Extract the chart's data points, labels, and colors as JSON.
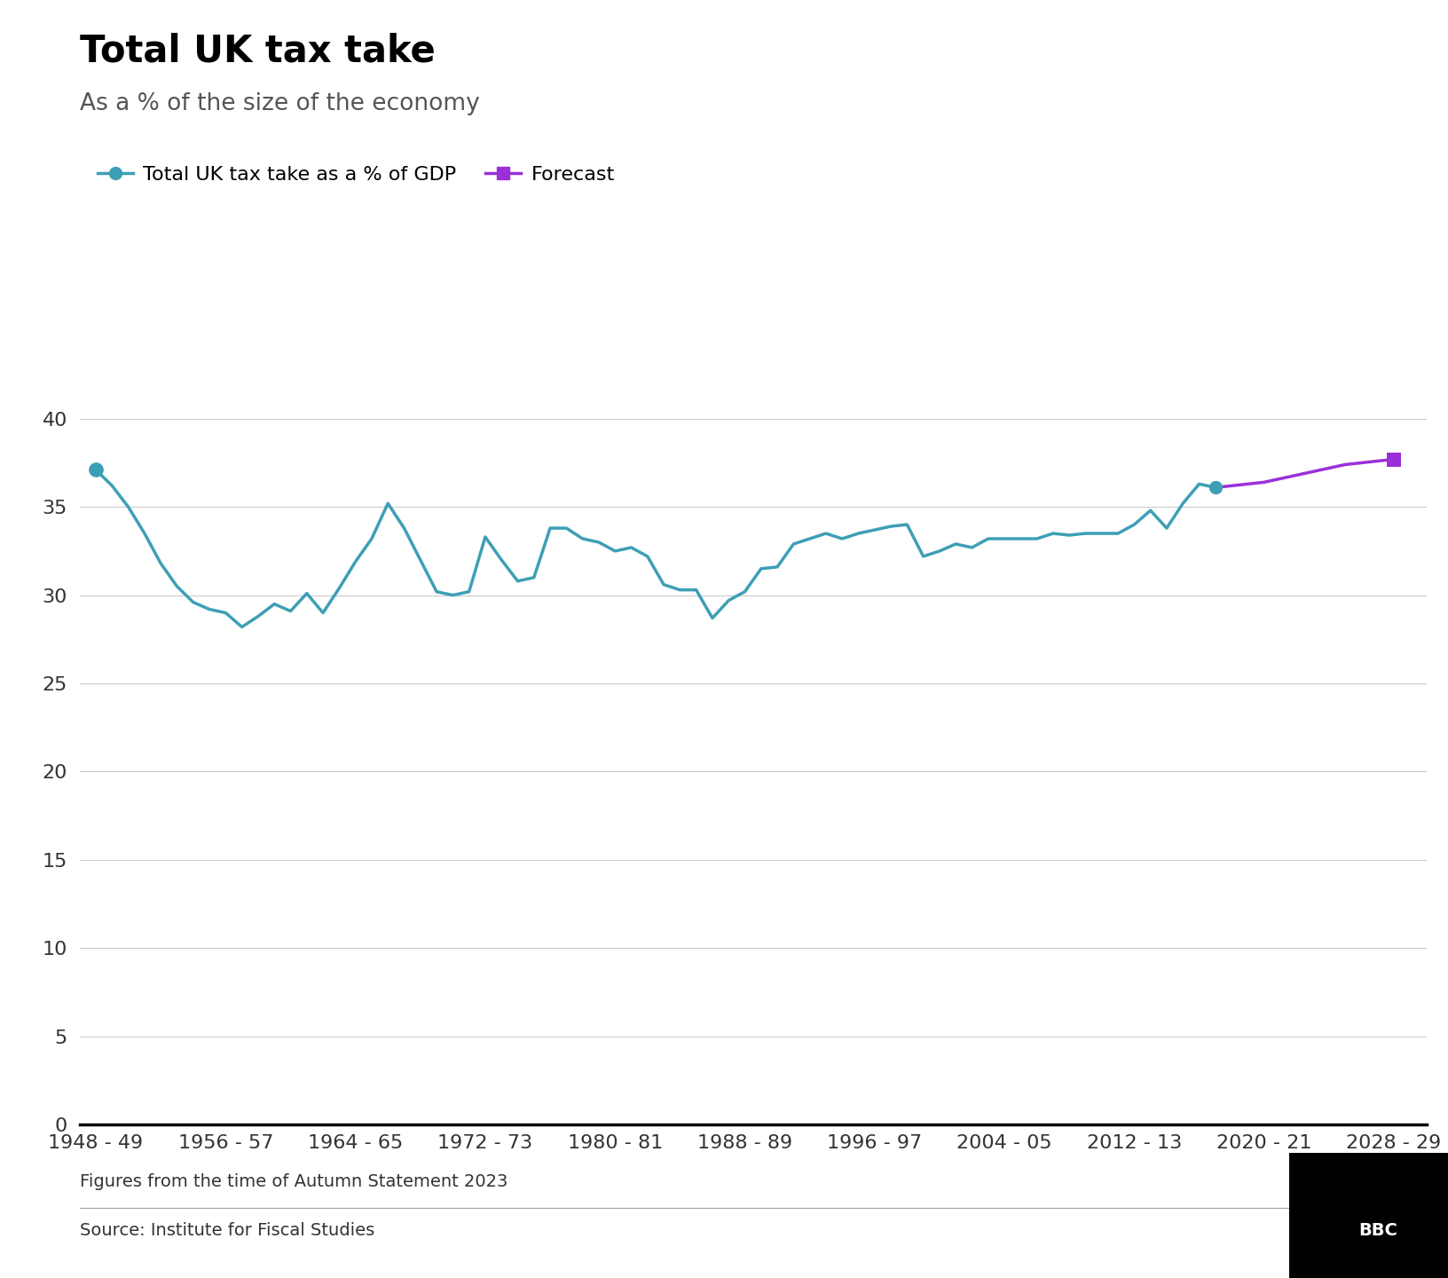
{
  "title": "Total UK tax take",
  "subtitle": "As a % of the size of the economy",
  "footnote": "Figures from the time of Autumn Statement 2023",
  "source": "Source: Institute for Fiscal Studies",
  "bbc_label": "BBC",
  "legend_gdp": "Total UK tax take as a % of GDP",
  "legend_forecast": "Forecast",
  "teal_color": "#3d9fb5",
  "purple_color": "#9b30d9",
  "title_fontsize": 30,
  "subtitle_fontsize": 19,
  "legend_fontsize": 16,
  "tick_fontsize": 16,
  "footnote_fontsize": 14,
  "ylim": [
    0,
    42
  ],
  "yticks": [
    0,
    5,
    10,
    15,
    20,
    25,
    30,
    35,
    40
  ],
  "x_labels": [
    "1948 - 49",
    "1956 - 57",
    "1964 - 65",
    "1972 - 73",
    "1980 - 81",
    "1988 - 89",
    "1996 - 97",
    "2004 - 05",
    "2012 - 13",
    "2020 - 21",
    "2028 - 29"
  ],
  "historical_x": [
    0,
    1,
    2,
    3,
    4,
    5,
    6,
    7,
    8,
    9,
    10,
    11,
    12,
    13,
    14,
    15,
    16,
    17,
    18,
    19,
    20,
    21,
    22,
    23,
    24,
    25,
    26,
    27,
    28,
    29,
    30,
    31,
    32,
    33,
    34,
    35,
    36,
    37,
    38,
    39,
    40,
    41,
    42,
    43,
    44,
    45,
    46,
    47,
    48,
    49,
    50,
    51,
    52,
    53,
    54,
    55,
    56,
    57,
    58,
    59,
    60,
    61,
    62,
    63,
    64,
    65,
    66,
    67,
    68,
    69
  ],
  "historical_y": [
    37.1,
    36.2,
    35.0,
    33.5,
    31.8,
    30.5,
    29.6,
    29.2,
    29.0,
    28.2,
    28.8,
    29.5,
    29.1,
    30.1,
    29.0,
    30.4,
    31.9,
    33.2,
    35.2,
    33.8,
    32.0,
    30.2,
    30.0,
    30.2,
    33.3,
    32.0,
    30.8,
    31.0,
    33.8,
    33.8,
    33.2,
    33.0,
    32.5,
    32.7,
    32.2,
    30.6,
    30.3,
    30.3,
    28.7,
    29.7,
    30.2,
    31.5,
    31.6,
    32.9,
    33.2,
    33.5,
    33.2,
    33.5,
    33.7,
    33.9,
    34.0,
    32.2,
    32.5,
    32.9,
    32.7,
    33.2,
    33.2,
    33.2,
    33.2,
    33.5,
    33.4,
    33.5,
    33.5,
    33.5,
    34.0,
    34.8,
    33.8,
    35.2,
    36.3,
    36.1
  ],
  "forecast_x": [
    69,
    70,
    71,
    72,
    73,
    74,
    75,
    76,
    77,
    78,
    79,
    80
  ],
  "forecast_y": [
    36.1,
    36.2,
    36.3,
    36.4,
    36.6,
    36.8,
    37.0,
    37.2,
    37.4,
    37.5,
    37.6,
    37.7
  ],
  "x_tick_positions": [
    0,
    8,
    16,
    24,
    32,
    40,
    48,
    56,
    64,
    72,
    80
  ],
  "xlim": [
    -1,
    82
  ],
  "total_x_points": 81,
  "marker_start_x": 0,
  "marker_start_y": 37.1,
  "marker_junction_x": 69,
  "marker_junction_y": 36.1,
  "marker_end_x": 80,
  "marker_end_y": 37.7
}
